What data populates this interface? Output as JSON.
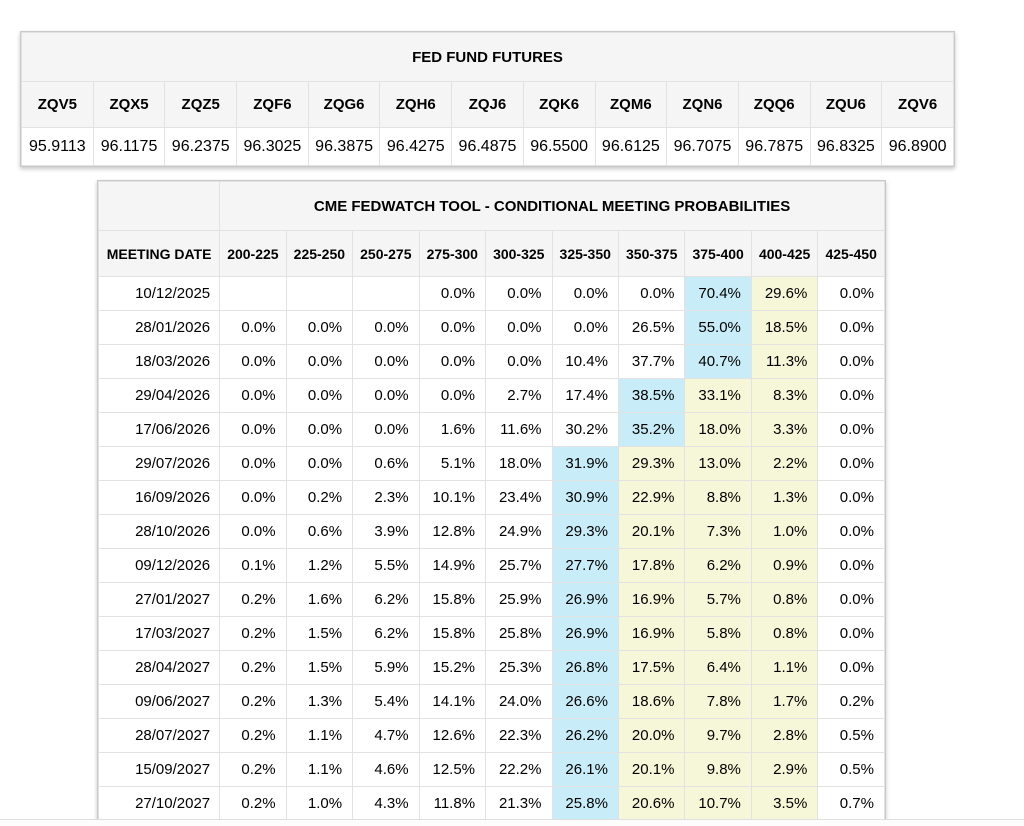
{
  "colors": {
    "highlight_blue": "#c9edf8",
    "highlight_yellow": "#f6f6d8",
    "header_bg": "#f5f5f6",
    "border": "#e2e2e2"
  },
  "futures_table": {
    "title": "FED FUND FUTURES",
    "columns": [
      "ZQV5",
      "ZQX5",
      "ZQZ5",
      "ZQF6",
      "ZQG6",
      "ZQH6",
      "ZQJ6",
      "ZQK6",
      "ZQM6",
      "ZQN6",
      "ZQQ6",
      "ZQU6",
      "ZQV6"
    ],
    "values": [
      "95.9113",
      "96.1175",
      "96.2375",
      "96.3025",
      "96.3875",
      "96.4275",
      "96.4875",
      "96.5500",
      "96.6125",
      "96.7075",
      "96.7875",
      "96.8325",
      "96.8900"
    ]
  },
  "fedwatch_table": {
    "title": "CME FEDWATCH TOOL - CONDITIONAL MEETING PROBABILITIES",
    "date_header": "MEETING DATE",
    "rate_columns": [
      "200-225",
      "225-250",
      "250-275",
      "275-300",
      "300-325",
      "325-350",
      "350-375",
      "375-400",
      "400-425",
      "425-450"
    ],
    "rows": [
      {
        "date": "10/12/2025",
        "values": [
          "",
          "",
          "",
          "0.0%",
          "0.0%",
          "0.0%",
          "0.0%",
          "70.4%",
          "29.6%",
          "0.0%"
        ],
        "highlights": [
          "",
          "",
          "",
          "",
          "",
          "",
          "",
          "blue",
          "yellow",
          ""
        ]
      },
      {
        "date": "28/01/2026",
        "values": [
          "0.0%",
          "0.0%",
          "0.0%",
          "0.0%",
          "0.0%",
          "0.0%",
          "26.5%",
          "55.0%",
          "18.5%",
          "0.0%"
        ],
        "highlights": [
          "",
          "",
          "",
          "",
          "",
          "",
          "",
          "blue",
          "yellow",
          ""
        ]
      },
      {
        "date": "18/03/2026",
        "values": [
          "0.0%",
          "0.0%",
          "0.0%",
          "0.0%",
          "0.0%",
          "10.4%",
          "37.7%",
          "40.7%",
          "11.3%",
          "0.0%"
        ],
        "highlights": [
          "",
          "",
          "",
          "",
          "",
          "",
          "",
          "blue",
          "yellow",
          ""
        ]
      },
      {
        "date": "29/04/2026",
        "values": [
          "0.0%",
          "0.0%",
          "0.0%",
          "0.0%",
          "2.7%",
          "17.4%",
          "38.5%",
          "33.1%",
          "8.3%",
          "0.0%"
        ],
        "highlights": [
          "",
          "",
          "",
          "",
          "",
          "",
          "blue",
          "yellow",
          "yellow",
          ""
        ]
      },
      {
        "date": "17/06/2026",
        "values": [
          "0.0%",
          "0.0%",
          "0.0%",
          "1.6%",
          "11.6%",
          "30.2%",
          "35.2%",
          "18.0%",
          "3.3%",
          "0.0%"
        ],
        "highlights": [
          "",
          "",
          "",
          "",
          "",
          "",
          "blue",
          "yellow",
          "yellow",
          ""
        ]
      },
      {
        "date": "29/07/2026",
        "values": [
          "0.0%",
          "0.0%",
          "0.6%",
          "5.1%",
          "18.0%",
          "31.9%",
          "29.3%",
          "13.0%",
          "2.2%",
          "0.0%"
        ],
        "highlights": [
          "",
          "",
          "",
          "",
          "",
          "blue",
          "yellow",
          "yellow",
          "yellow",
          ""
        ]
      },
      {
        "date": "16/09/2026",
        "values": [
          "0.0%",
          "0.2%",
          "2.3%",
          "10.1%",
          "23.4%",
          "30.9%",
          "22.9%",
          "8.8%",
          "1.3%",
          "0.0%"
        ],
        "highlights": [
          "",
          "",
          "",
          "",
          "",
          "blue",
          "yellow",
          "yellow",
          "yellow",
          ""
        ]
      },
      {
        "date": "28/10/2026",
        "values": [
          "0.0%",
          "0.6%",
          "3.9%",
          "12.8%",
          "24.9%",
          "29.3%",
          "20.1%",
          "7.3%",
          "1.0%",
          "0.0%"
        ],
        "highlights": [
          "",
          "",
          "",
          "",
          "",
          "blue",
          "yellow",
          "yellow",
          "yellow",
          ""
        ]
      },
      {
        "date": "09/12/2026",
        "values": [
          "0.1%",
          "1.2%",
          "5.5%",
          "14.9%",
          "25.7%",
          "27.7%",
          "17.8%",
          "6.2%",
          "0.9%",
          "0.0%"
        ],
        "highlights": [
          "",
          "",
          "",
          "",
          "",
          "blue",
          "yellow",
          "yellow",
          "yellow",
          ""
        ]
      },
      {
        "date": "27/01/2027",
        "values": [
          "0.2%",
          "1.6%",
          "6.2%",
          "15.8%",
          "25.9%",
          "26.9%",
          "16.9%",
          "5.7%",
          "0.8%",
          "0.0%"
        ],
        "highlights": [
          "",
          "",
          "",
          "",
          "",
          "blue",
          "yellow",
          "yellow",
          "yellow",
          ""
        ]
      },
      {
        "date": "17/03/2027",
        "values": [
          "0.2%",
          "1.5%",
          "6.2%",
          "15.8%",
          "25.8%",
          "26.9%",
          "16.9%",
          "5.8%",
          "0.8%",
          "0.0%"
        ],
        "highlights": [
          "",
          "",
          "",
          "",
          "",
          "blue",
          "yellow",
          "yellow",
          "yellow",
          ""
        ]
      },
      {
        "date": "28/04/2027",
        "values": [
          "0.2%",
          "1.5%",
          "5.9%",
          "15.2%",
          "25.3%",
          "26.8%",
          "17.5%",
          "6.4%",
          "1.1%",
          "0.0%"
        ],
        "highlights": [
          "",
          "",
          "",
          "",
          "",
          "blue",
          "yellow",
          "yellow",
          "yellow",
          ""
        ]
      },
      {
        "date": "09/06/2027",
        "values": [
          "0.2%",
          "1.3%",
          "5.4%",
          "14.1%",
          "24.0%",
          "26.6%",
          "18.6%",
          "7.8%",
          "1.7%",
          "0.2%"
        ],
        "highlights": [
          "",
          "",
          "",
          "",
          "",
          "blue",
          "yellow",
          "yellow",
          "yellow",
          ""
        ]
      },
      {
        "date": "28/07/2027",
        "values": [
          "0.2%",
          "1.1%",
          "4.7%",
          "12.6%",
          "22.3%",
          "26.2%",
          "20.0%",
          "9.7%",
          "2.8%",
          "0.5%"
        ],
        "highlights": [
          "",
          "",
          "",
          "",
          "",
          "blue",
          "yellow",
          "yellow",
          "yellow",
          ""
        ]
      },
      {
        "date": "15/09/2027",
        "values": [
          "0.2%",
          "1.1%",
          "4.6%",
          "12.5%",
          "22.2%",
          "26.1%",
          "20.1%",
          "9.8%",
          "2.9%",
          "0.5%"
        ],
        "highlights": [
          "",
          "",
          "",
          "",
          "",
          "blue",
          "yellow",
          "yellow",
          "yellow",
          ""
        ]
      },
      {
        "date": "27/10/2027",
        "values": [
          "0.2%",
          "1.0%",
          "4.3%",
          "11.8%",
          "21.3%",
          "25.8%",
          "20.6%",
          "10.7%",
          "3.5%",
          "0.7%"
        ],
        "highlights": [
          "",
          "",
          "",
          "",
          "",
          "blue",
          "yellow",
          "yellow",
          "yellow",
          ""
        ]
      }
    ]
  }
}
